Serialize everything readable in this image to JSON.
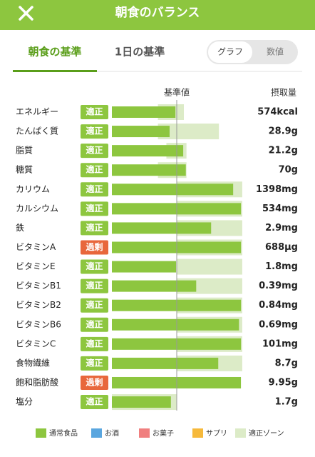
{
  "header": {
    "title": "朝食のバランス"
  },
  "tabs": [
    "朝食の基準",
    "1日の基準"
  ],
  "toggle": [
    "グラフ",
    "数値"
  ],
  "columns": {
    "standard": "基準値",
    "intake": "摂取量"
  },
  "reference": 100,
  "rows": [
    {
      "name": "エネルギー",
      "status": "適正",
      "color": "#8dc63f",
      "value": "574kcal",
      "bar": 98,
      "zone": [
        71,
        111
      ]
    },
    {
      "name": "たんぱく質",
      "status": "適正",
      "color": "#8dc63f",
      "value": "28.9g",
      "bar": 89,
      "zone": [
        71,
        165
      ]
    },
    {
      "name": "脂質",
      "status": "適正",
      "color": "#8dc63f",
      "value": "21.2g",
      "bar": 110,
      "zone": [
        84,
        115
      ]
    },
    {
      "name": "糖質",
      "status": "適正",
      "color": "#8dc63f",
      "value": "70g",
      "bar": 114,
      "zone": [
        71,
        115
      ]
    },
    {
      "name": "カリウム",
      "status": "適正",
      "color": "#8dc63f",
      "value": "1398mg",
      "bar": 187,
      "zone": [
        100,
        201
      ]
    },
    {
      "name": "カルシウム",
      "status": "適正",
      "color": "#8dc63f",
      "value": "534mg",
      "bar": 199,
      "zone": [
        100,
        201
      ]
    },
    {
      "name": "鉄",
      "status": "適正",
      "color": "#8dc63f",
      "value": "2.9mg",
      "bar": 153,
      "zone": [
        100,
        201
      ]
    },
    {
      "name": "ビタミンA",
      "status": "過剰",
      "color": "#e8673c",
      "value": "688μg",
      "bar": 199,
      "zone": [
        100,
        201
      ]
    },
    {
      "name": "ビタミンE",
      "status": "適正",
      "color": "#8dc63f",
      "value": "1.8mg",
      "bar": 99,
      "zone": [
        100,
        201
      ]
    },
    {
      "name": "ビタミンB1",
      "status": "適正",
      "color": "#8dc63f",
      "value": "0.39mg",
      "bar": 130,
      "zone": [
        100,
        201
      ]
    },
    {
      "name": "ビタミンB2",
      "status": "適正",
      "color": "#8dc63f",
      "value": "0.84mg",
      "bar": 199,
      "zone": [
        100,
        201
      ]
    },
    {
      "name": "ビタミンB6",
      "status": "適正",
      "color": "#8dc63f",
      "value": "0.69mg",
      "bar": 196,
      "zone": [
        100,
        201
      ]
    },
    {
      "name": "ビタミンC",
      "status": "適正",
      "color": "#8dc63f",
      "value": "101mg",
      "bar": 199,
      "zone": [
        100,
        201
      ]
    },
    {
      "name": "食物繊維",
      "status": "適正",
      "color": "#8dc63f",
      "value": "8.7g",
      "bar": 164,
      "zone": [
        100,
        201
      ]
    },
    {
      "name": "飽和脂肪酸",
      "status": "過剰",
      "color": "#e8673c",
      "value": "9.95g",
      "bar": 199,
      "zone": null
    },
    {
      "name": "塩分",
      "status": "適正",
      "color": "#8dc63f",
      "value": "1.7g",
      "bar": 91,
      "zone": [
        0,
        100
      ]
    }
  ],
  "legend": [
    {
      "label": "通常食品",
      "color": "#8dc63f"
    },
    {
      "label": "お酒",
      "color": "#5aa6df"
    },
    {
      "label": "お菓子",
      "color": "#f07f7f"
    },
    {
      "label": "サプリ",
      "color": "#f6b93b"
    },
    {
      "label": "適正ゾーン",
      "color": "#dcebc7"
    }
  ]
}
